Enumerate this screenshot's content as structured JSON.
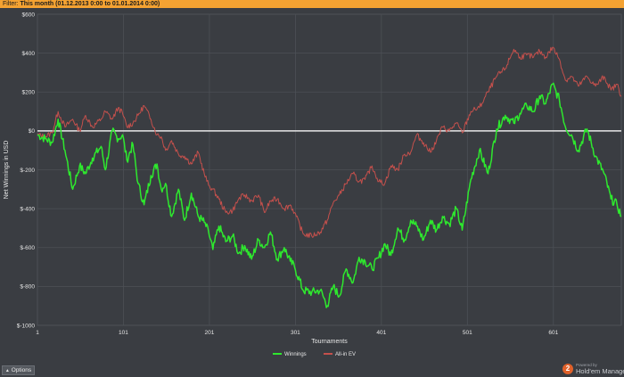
{
  "filter": {
    "label": "Filter:",
    "value": "This month (01.12.2013 0:00 to 01.01.2014 0:00)"
  },
  "options": {
    "label": "Options",
    "icon": "caret-up-icon"
  },
  "brand": {
    "powered_by": "Powered by",
    "name": "Hold'em Manager",
    "logo_text": "2"
  },
  "colors": {
    "winnings": "#2ee82e",
    "allin_ev": "#c4504c",
    "zero_line": "#e8e8e8",
    "grid": "#4c5056",
    "plot_bg": "#3a3d42",
    "text": "#e6e6e6"
  },
  "chart_data": {
    "type": "line",
    "xlabel": "Tournaments",
    "ylabel": "Net Winnings in USD",
    "xlim": [
      1,
      680
    ],
    "ylim": [
      -1000,
      600
    ],
    "x_ticks": [
      1,
      101,
      201,
      301,
      401,
      501,
      601
    ],
    "x_tick_labels": [
      "1",
      "101",
      "201",
      "301",
      "401",
      "501",
      "601"
    ],
    "y_ticks": [
      600,
      400,
      200,
      0,
      -200,
      -400,
      -600,
      -800,
      -1000
    ],
    "y_tick_labels": [
      "$600",
      "$400",
      "$200",
      "$0",
      "$-200",
      "$-400",
      "$-600",
      "$-800",
      "$-1000"
    ],
    "grid": true,
    "legend_position": "bottom-center",
    "series": [
      {
        "name": "Winnings",
        "x": [
          1,
          10,
          18,
          25,
          33,
          42,
          50,
          57,
          65,
          75,
          80,
          88,
          95,
          100,
          105,
          112,
          118,
          125,
          133,
          140,
          145,
          150,
          157,
          165,
          172,
          180,
          188,
          195,
          200,
          205,
          212,
          220,
          228,
          235,
          242,
          250,
          258,
          265,
          272,
          280,
          288,
          295,
          300,
          310,
          320,
          330,
          338,
          345,
          352,
          360,
          368,
          375,
          382,
          390,
          398,
          405,
          412,
          420,
          428,
          435,
          442,
          450,
          458,
          465,
          472,
          480,
          488,
          495,
          505,
          515,
          525,
          535,
          545,
          555,
          562,
          570,
          578,
          585,
          592,
          600,
          608,
          615,
          622,
          630,
          640,
          650,
          660,
          668,
          675,
          680
        ],
        "y": [
          -20,
          -40,
          -60,
          60,
          -100,
          -300,
          -180,
          -220,
          -140,
          -80,
          -200,
          0,
          -40,
          -20,
          -150,
          -70,
          -270,
          -380,
          -230,
          -170,
          -300,
          -270,
          -440,
          -300,
          -460,
          -320,
          -440,
          -470,
          -520,
          -610,
          -490,
          -570,
          -540,
          -630,
          -590,
          -660,
          -560,
          -600,
          -520,
          -660,
          -600,
          -670,
          -700,
          -820,
          -830,
          -820,
          -900,
          -800,
          -850,
          -710,
          -780,
          -650,
          -670,
          -710,
          -650,
          -580,
          -640,
          -500,
          -560,
          -460,
          -490,
          -560,
          -460,
          -510,
          -440,
          -480,
          -400,
          -510,
          -250,
          -100,
          -220,
          10,
          80,
          40,
          90,
          130,
          100,
          180,
          140,
          240,
          160,
          20,
          -20,
          -100,
          10,
          -130,
          -220,
          -350,
          -380,
          -440
        ]
      },
      {
        "name": "All-in EV",
        "x": [
          1,
          10,
          18,
          25,
          33,
          42,
          50,
          57,
          65,
          75,
          80,
          88,
          95,
          100,
          105,
          112,
          118,
          125,
          133,
          140,
          145,
          150,
          157,
          165,
          172,
          180,
          188,
          195,
          200,
          205,
          212,
          220,
          228,
          235,
          242,
          250,
          258,
          265,
          272,
          280,
          288,
          295,
          300,
          310,
          320,
          330,
          338,
          345,
          352,
          360,
          368,
          375,
          382,
          390,
          398,
          405,
          412,
          420,
          428,
          435,
          442,
          450,
          458,
          465,
          472,
          480,
          488,
          495,
          505,
          515,
          525,
          535,
          545,
          555,
          562,
          570,
          578,
          585,
          592,
          600,
          608,
          615,
          622,
          630,
          640,
          650,
          660,
          668,
          675,
          680
        ],
        "y": [
          -20,
          -30,
          -10,
          100,
          20,
          60,
          0,
          80,
          20,
          60,
          100,
          60,
          120,
          90,
          20,
          40,
          80,
          130,
          60,
          -20,
          -30,
          -100,
          -50,
          -120,
          -130,
          -170,
          -110,
          -220,
          -280,
          -300,
          -350,
          -420,
          -410,
          -350,
          -330,
          -360,
          -330,
          -420,
          -360,
          -350,
          -400,
          -380,
          -420,
          -530,
          -540,
          -520,
          -460,
          -370,
          -330,
          -270,
          -220,
          -260,
          -250,
          -180,
          -260,
          -270,
          -180,
          -200,
          -120,
          -110,
          -20,
          -60,
          -110,
          -50,
          20,
          0,
          40,
          -10,
          100,
          120,
          200,
          280,
          320,
          420,
          380,
          390,
          380,
          410,
          380,
          430,
          370,
          260,
          280,
          230,
          280,
          230,
          280,
          210,
          240,
          180
        ]
      }
    ]
  }
}
